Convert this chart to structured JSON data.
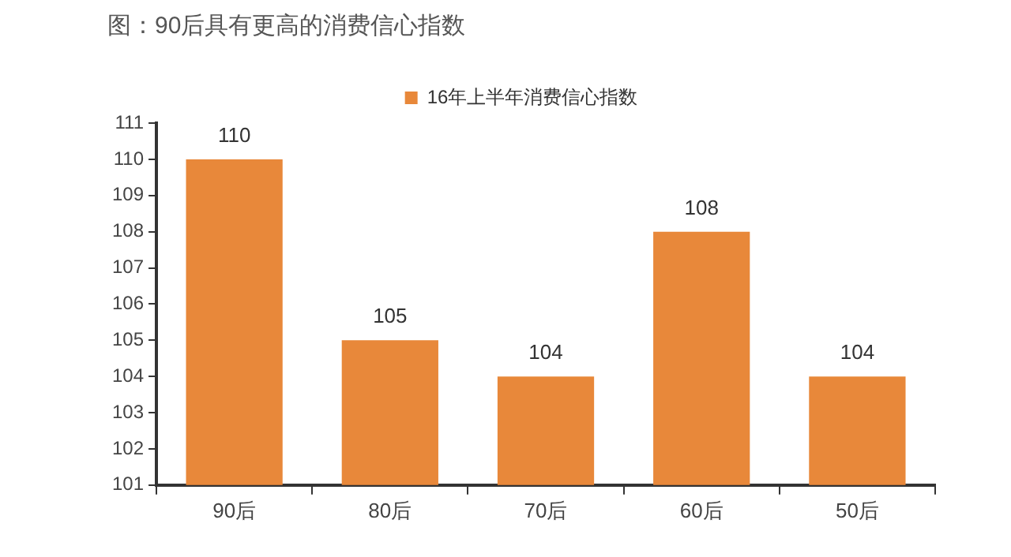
{
  "chart_data": {
    "type": "bar",
    "title": "图：90后具有更高的消费信心指数",
    "categories": [
      "90后",
      "80后",
      "70后",
      "60后",
      "50后"
    ],
    "series": [
      {
        "name": "16年上半年消费信心指数",
        "color": "#e8883a",
        "values": [
          110,
          105,
          104,
          108,
          104
        ]
      }
    ],
    "ylim": [
      101,
      111
    ],
    "yticks": [
      101,
      102,
      103,
      104,
      105,
      106,
      107,
      108,
      109,
      110,
      111
    ],
    "grid": false,
    "legend": "top",
    "data_labels": true
  }
}
